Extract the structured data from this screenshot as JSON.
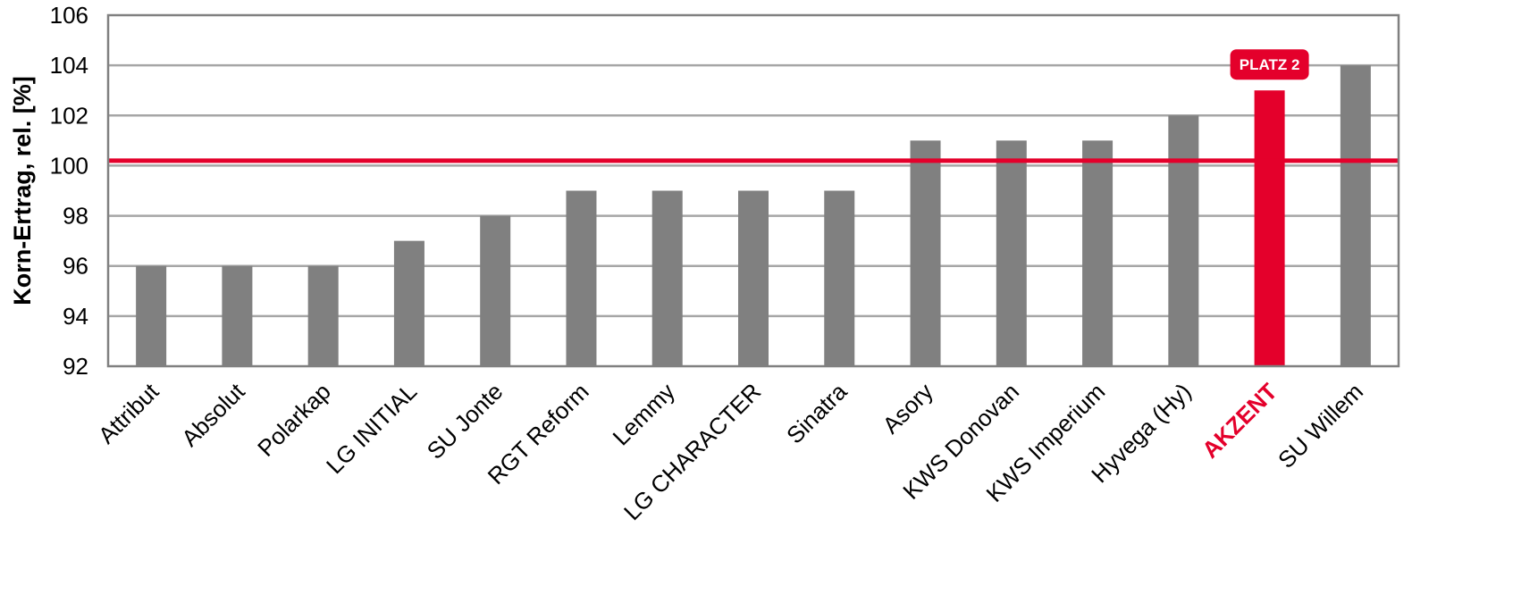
{
  "chart_data": {
    "type": "bar",
    "ylabel": "Korn-Ertrag, rel. [%]",
    "ylim": [
      92,
      106
    ],
    "yticks": [
      92,
      94,
      96,
      98,
      100,
      102,
      104,
      106
    ],
    "grid": true,
    "reference_line": {
      "value": 100.2,
      "color": "#e4002b"
    },
    "bar_color": "#808080",
    "highlight_color": "#e4002b",
    "categories": [
      "Attribut",
      "Absolut",
      "Polarkap",
      "LG INITIAL",
      "SU Jonte",
      "RGT Reform",
      "Lemmy",
      "LG CHARACTER",
      "Sinatra",
      "Asory",
      "KWS Donovan",
      "KWS Imperium",
      "Hyvega (Hy)",
      "AKZENT",
      "SU Willem"
    ],
    "values": [
      96,
      96,
      96,
      97,
      98,
      99,
      99,
      99,
      99,
      101,
      101,
      101,
      102,
      103,
      104
    ],
    "highlight": {
      "category": "AKZENT",
      "badge": "PLATZ 2"
    }
  }
}
